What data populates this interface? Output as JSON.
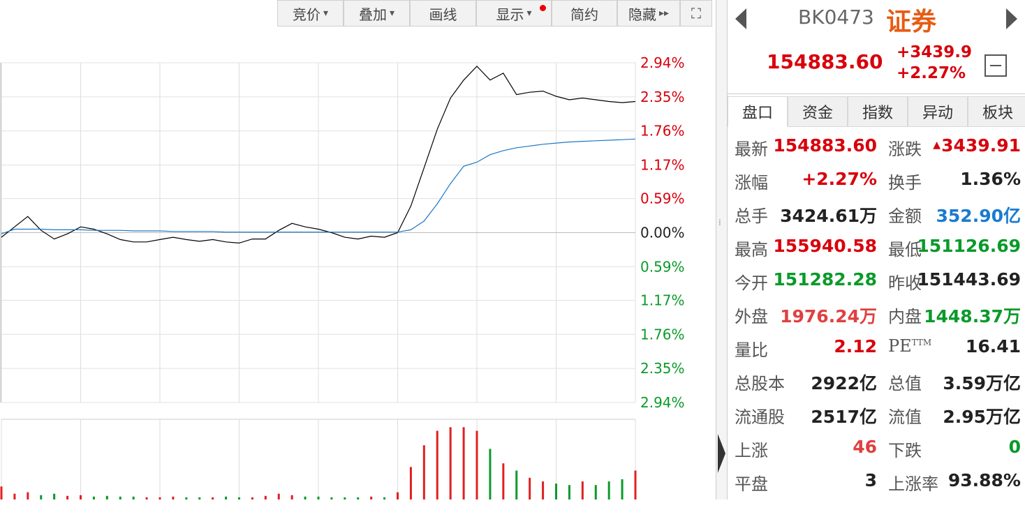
{
  "toolbar": {
    "buttons": [
      "竞价",
      "叠加",
      "画线",
      "显示",
      "简约",
      "隐藏"
    ]
  },
  "header": {
    "code": "BK0473",
    "name": "证券",
    "price": "154883.60",
    "change": "+3439.9",
    "change_pct": "+2.27%"
  },
  "tabs": [
    "盘口",
    "资金",
    "指数",
    "异动",
    "板块"
  ],
  "quote": {
    "rows": [
      [
        "最新",
        "154883.60",
        "涨跌",
        "3439.91"
      ],
      [
        "涨幅",
        "+2.27%",
        "换手",
        "1.36%"
      ],
      [
        "总手",
        "3424.61万",
        "金额",
        "352.90亿"
      ],
      [
        "最高",
        "155940.58",
        "最低",
        "151126.69"
      ],
      [
        "今开",
        "151282.28",
        "昨收",
        "151443.69"
      ],
      [
        "外盘",
        "1976.24万",
        "内盘",
        "1448.37万"
      ],
      [
        "量比",
        "2.12",
        {
          "text": "PE",
          "sup": "TTM"
        },
        "16.41"
      ],
      [
        "总股本",
        "2922亿",
        "总值",
        "3.59万亿"
      ],
      [
        "流通股",
        "2517亿",
        "流值",
        "2.95万亿"
      ],
      [
        "上涨",
        "46",
        "下跌",
        "0"
      ],
      [
        "平盘",
        "3",
        "上涨率",
        "93.88%"
      ]
    ]
  },
  "chart_data": [
    {
      "type": "line",
      "x": [
        0,
        5,
        10,
        15,
        20,
        25,
        30,
        35,
        40,
        45,
        50,
        55,
        60,
        65,
        70,
        75,
        80,
        85,
        90,
        95,
        100,
        105,
        110,
        115,
        120,
        125,
        130,
        135,
        140,
        145,
        150,
        155,
        160,
        165,
        170,
        175,
        180,
        185,
        190,
        195,
        200,
        205,
        210,
        215,
        220,
        225,
        230,
        235,
        240
      ],
      "xlim": [
        0,
        240
      ],
      "series": [
        {
          "color": "#000000",
          "values": [
            -0.08,
            0.1,
            0.28,
            0.04,
            -0.11,
            -0.02,
            0.1,
            0.06,
            -0.02,
            -0.12,
            -0.16,
            -0.16,
            -0.12,
            -0.08,
            -0.12,
            -0.15,
            -0.12,
            -0.16,
            -0.18,
            -0.11,
            -0.11,
            0.04,
            0.16,
            0.1,
            0.06,
            0,
            -0.08,
            -0.11,
            -0.06,
            -0.08,
            0,
            0.46,
            1.12,
            1.79,
            2.33,
            2.64,
            2.88,
            2.64,
            2.76,
            2.39,
            2.43,
            2.45,
            2.36,
            2.3,
            2.33,
            2.3,
            2.27,
            2.25,
            2.27
          ]
        },
        {
          "color": "#1f77c4",
          "values": [
            -0.02,
            0.06,
            0.06,
            0.06,
            0.05,
            0.05,
            0.05,
            0.04,
            0.04,
            0.04,
            0.03,
            0.03,
            0.03,
            0.02,
            0.02,
            0.02,
            0.02,
            0.01,
            0.01,
            0.01,
            0.01,
            0.01,
            0.01,
            0.01,
            0.01,
            0.01,
            0.01,
            0.01,
            0.01,
            0.01,
            0.01,
            0.05,
            0.2,
            0.5,
            0.85,
            1.15,
            1.22,
            1.35,
            1.42,
            1.47,
            1.5,
            1.53,
            1.55,
            1.57,
            1.58,
            1.59,
            1.6,
            1.61,
            1.62
          ]
        }
      ],
      "ylim": [
        -2.94,
        2.94
      ],
      "yticks": [
        {
          "value": 2.94,
          "label": "2.94%"
        },
        {
          "value": 2.35,
          "label": "2.35%"
        },
        {
          "value": 1.76,
          "label": "1.76%"
        },
        {
          "value": 1.17,
          "label": "1.17%"
        },
        {
          "value": 0.59,
          "label": "0.59%"
        },
        {
          "value": 0,
          "label": "0.00%"
        },
        {
          "value": -0.59,
          "label": "0.59%"
        },
        {
          "value": -1.17,
          "label": "1.17%"
        },
        {
          "value": -1.76,
          "label": "1.76%"
        },
        {
          "value": -2.35,
          "label": "2.35%"
        },
        {
          "value": -2.94,
          "label": "2.94%"
        }
      ],
      "grid": true
    },
    {
      "type": "bar",
      "x": [
        0,
        5,
        10,
        15,
        20,
        25,
        30,
        35,
        40,
        45,
        50,
        55,
        60,
        65,
        70,
        75,
        80,
        85,
        90,
        95,
        100,
        105,
        110,
        115,
        120,
        125,
        130,
        135,
        140,
        145,
        150,
        155,
        160,
        165,
        170,
        175,
        180,
        185,
        190,
        195,
        200,
        205,
        210,
        215,
        220,
        225,
        230,
        235,
        240
      ],
      "xlim": [
        0,
        240
      ],
      "values": [
        18,
        8,
        10,
        6,
        8,
        5,
        6,
        4,
        5,
        4,
        4,
        3,
        3,
        4,
        3,
        3,
        3,
        4,
        3,
        3,
        5,
        8,
        6,
        4,
        4,
        3,
        3,
        3,
        4,
        3,
        10,
        45,
        75,
        95,
        100,
        100,
        95,
        70,
        50,
        40,
        30,
        25,
        22,
        20,
        25,
        20,
        25,
        28,
        40
      ],
      "ylim": [
        0,
        110
      ]
    }
  ]
}
